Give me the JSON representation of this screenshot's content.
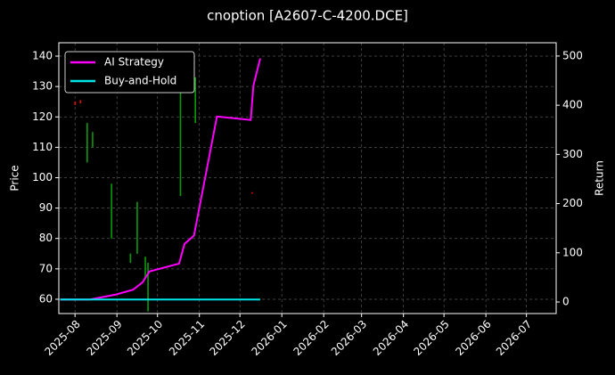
{
  "chart_data": {
    "type": "candlestick",
    "title": "cnoption [A2607-C-4200.DCE]",
    "ylabel": "Price",
    "y2label": "Return",
    "candles": {
      "x": [
        "2025-08-01",
        "2025-08-05",
        "2025-08-10",
        "2025-08-14",
        "2025-08-28",
        "2025-09-11",
        "2025-09-16",
        "2025-09-22",
        "2025-09-24",
        "2025-10-18",
        "2025-10-29",
        "2025-12-10"
      ],
      "open": [
        125,
        125.5,
        105,
        110,
        80,
        72,
        75,
        67,
        56,
        94,
        118,
        95.2
      ],
      "high": [
        125,
        125.5,
        118,
        115,
        98,
        75,
        92,
        74,
        72,
        139,
        133,
        95.2
      ],
      "low": [
        124,
        124.5,
        105,
        110,
        80,
        72,
        75,
        67,
        56,
        94,
        118,
        94.8
      ],
      "close": [
        124,
        124.5,
        118,
        115,
        98,
        75,
        92,
        74,
        72,
        139,
        133,
        94.8
      ],
      "up_color": "#0a9a0a",
      "down_color": "#ff0000"
    },
    "series": [
      {
        "name": "AI Strategy",
        "type": "line",
        "axis": "y2",
        "color": "#ff00ff",
        "x": [
          "2025-07-21",
          "2025-08-12",
          "2025-08-31",
          "2025-09-13",
          "2025-09-20",
          "2025-09-25",
          "2025-10-17",
          "2025-10-21",
          "2025-10-28",
          "2025-11-14",
          "2025-12-09",
          "2025-12-11",
          "2025-12-16"
        ],
        "values": [
          5,
          5,
          15,
          25,
          40,
          62,
          78,
          118,
          135,
          377,
          370,
          440,
          495
        ]
      },
      {
        "name": "Buy-and-Hold",
        "type": "line",
        "axis": "y2",
        "color": "#00e5e5",
        "x": [
          "2025-07-21",
          "2025-12-16"
        ],
        "values": [
          5,
          5
        ]
      }
    ],
    "xlim": [
      "2025-07-20",
      "2026-07-23"
    ],
    "xticks": [
      "2025-08",
      "2025-09",
      "2025-10",
      "2025-11",
      "2025-12",
      "2026-01",
      "2026-02",
      "2026-03",
      "2026-04",
      "2026-05",
      "2026-06",
      "2026-07"
    ],
    "ylim": [
      55.3,
      144.4
    ],
    "yticks": [
      60,
      70,
      80,
      90,
      100,
      110,
      120,
      130,
      140
    ],
    "y2lim": [
      -23.5,
      527
    ],
    "y2ticks": [
      0,
      100,
      200,
      300,
      400,
      500
    ],
    "grid": true,
    "legend": "upper left"
  }
}
